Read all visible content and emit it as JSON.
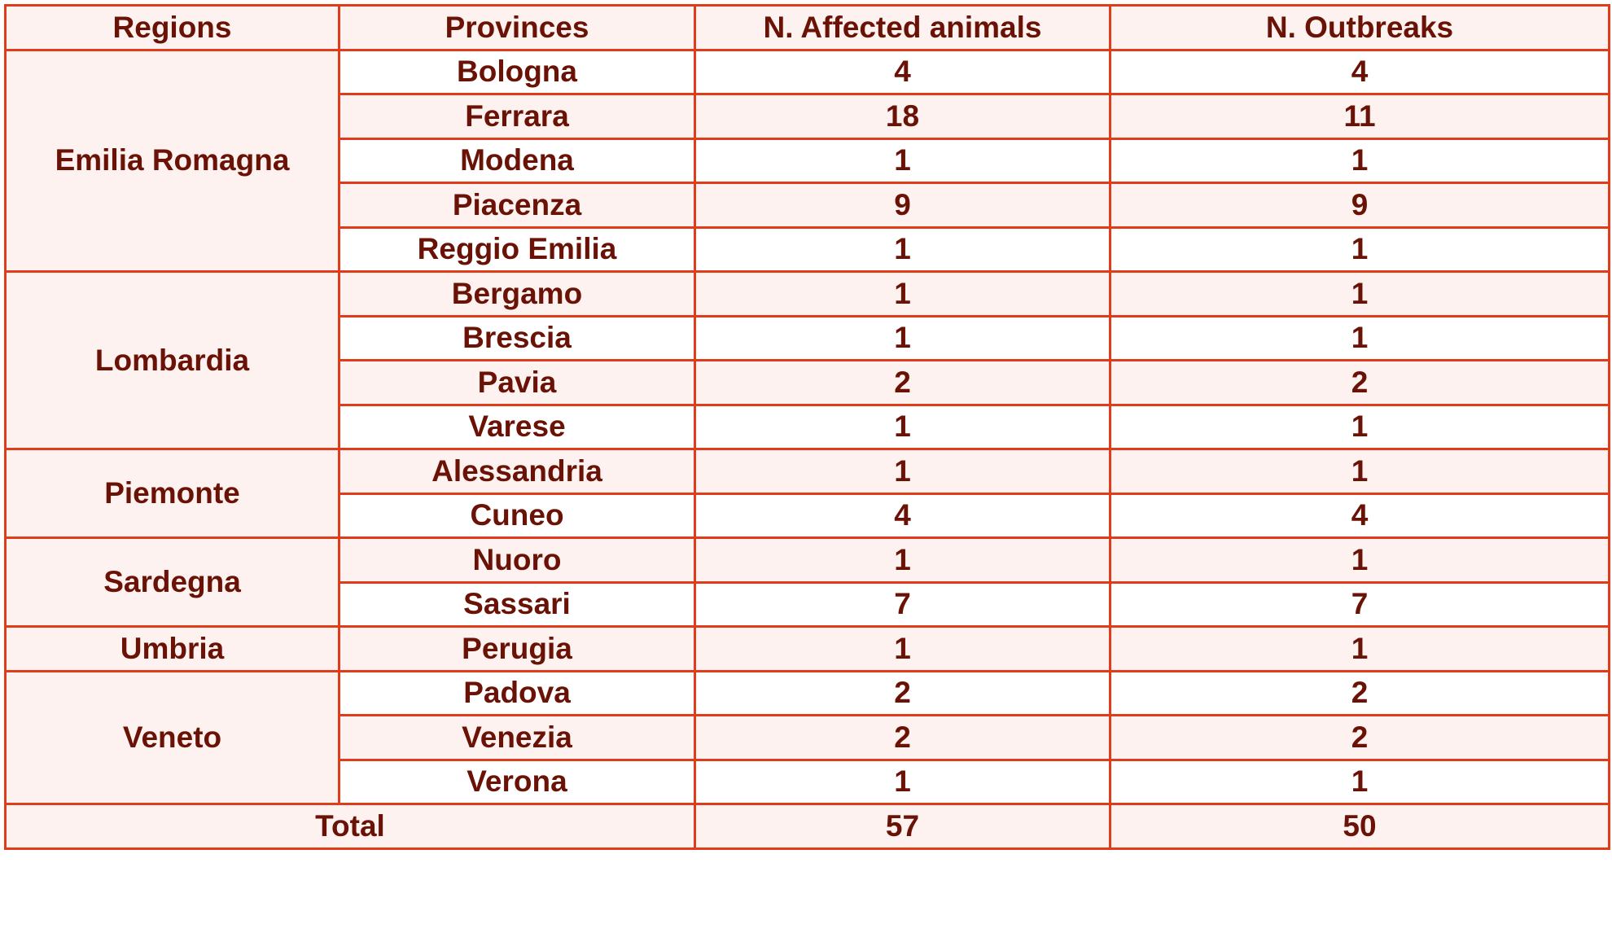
{
  "table": {
    "headers": [
      "Regions",
      "Provinces",
      "N. Affected animals",
      "N. Outbreaks"
    ],
    "groups": [
      {
        "region": "Emilia Romagna",
        "rows": [
          {
            "province": "Bologna",
            "affected": "4",
            "outbreaks": "4"
          },
          {
            "province": "Ferrara",
            "affected": "18",
            "outbreaks": "11"
          },
          {
            "province": "Modena",
            "affected": "1",
            "outbreaks": "1"
          },
          {
            "province": "Piacenza",
            "affected": "9",
            "outbreaks": "9"
          },
          {
            "province": "Reggio Emilia",
            "affected": "1",
            "outbreaks": "1"
          }
        ]
      },
      {
        "region": "Lombardia",
        "rows": [
          {
            "province": "Bergamo",
            "affected": "1",
            "outbreaks": "1"
          },
          {
            "province": "Brescia",
            "affected": "1",
            "outbreaks": "1"
          },
          {
            "province": "Pavia",
            "affected": "2",
            "outbreaks": "2"
          },
          {
            "province": "Varese",
            "affected": "1",
            "outbreaks": "1"
          }
        ]
      },
      {
        "region": "Piemonte",
        "rows": [
          {
            "province": "Alessandria",
            "affected": "1",
            "outbreaks": "1"
          },
          {
            "province": "Cuneo",
            "affected": "4",
            "outbreaks": "4"
          }
        ]
      },
      {
        "region": "Sardegna",
        "rows": [
          {
            "province": "Nuoro",
            "affected": "1",
            "outbreaks": "1"
          },
          {
            "province": "Sassari",
            "affected": "7",
            "outbreaks": "7"
          }
        ]
      },
      {
        "region": "Umbria",
        "rows": [
          {
            "province": "Perugia",
            "affected": "1",
            "outbreaks": "1"
          }
        ]
      },
      {
        "region": "Veneto",
        "rows": [
          {
            "province": "Padova",
            "affected": "2",
            "outbreaks": "2"
          },
          {
            "province": "Venezia",
            "affected": "2",
            "outbreaks": "2"
          },
          {
            "province": "Verona",
            "affected": "1",
            "outbreaks": "1"
          }
        ]
      }
    ],
    "total": {
      "label": "Total",
      "affected": "57",
      "outbreaks": "50"
    }
  },
  "colors": {
    "text": "#6b1206",
    "border": "#e03c1a",
    "shade": "#fdf2ef"
  }
}
